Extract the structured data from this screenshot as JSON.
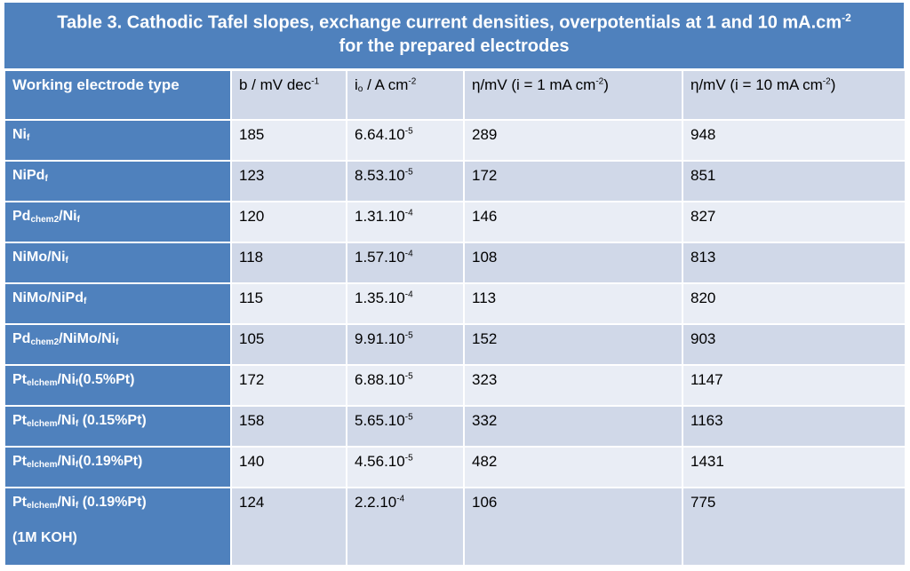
{
  "title": {
    "line1": "Table 3. Cathodic Tafel slopes, exchange current densities, overpotentials at 1 and 10 mA.cm",
    "line1_sup": "-2",
    "line2": "for the prepared electrodes"
  },
  "headers": {
    "col0": "Working electrode type",
    "col1_main": "b / mV dec",
    "col1_sup": "-1",
    "col2_main": "i",
    "col2_sub": "o",
    "col2_rest": " / A cm",
    "col2_sup": "-2",
    "col3_main": "η/mV (i = 1 mA cm",
    "col3_sup": "-2",
    "col3_end": ")",
    "col4_main": "η/mV (i = 10 mA cm",
    "col4_sup": "-2",
    "col4_end": ")"
  },
  "rows": [
    {
      "e1": "Ni",
      "s1": "f",
      "e2": "",
      "s2": "",
      "e3": "",
      "b": "185",
      "io": "6.64.10",
      "io_exp": "-5",
      "eta1": "289",
      "eta10": "948"
    },
    {
      "e1": "NiPd",
      "s1": "f",
      "e2": "",
      "s2": "",
      "e3": "",
      "b": "123",
      "io": "8.53.10",
      "io_exp": "-5",
      "eta1": "172",
      "eta10": "851"
    },
    {
      "e1": "Pd",
      "s1": "chem2",
      "e2": "/Ni",
      "s2": "f",
      "e3": "",
      "b": "120",
      "io": "1.31.10",
      "io_exp": "-4",
      "eta1": "146",
      "eta10": "827"
    },
    {
      "e1": "NiMo/Ni",
      "s1": "f",
      "e2": "",
      "s2": "",
      "e3": "",
      "b": "118",
      "io": "1.57.10",
      "io_exp": "-4",
      "eta1": "108",
      "eta10": "813"
    },
    {
      "e1": "NiMo/NiPd",
      "s1": "f",
      "e2": "",
      "s2": "",
      "e3": "",
      "b": "115",
      "io": "1.35.10",
      "io_exp": "-4",
      "eta1": "113",
      "eta10": "820"
    },
    {
      "e1": "Pd",
      "s1": "chem2",
      "e2": "/NiMo/Ni",
      "s2": "f",
      "e3": "",
      "b": "105",
      "io": "9.91.10",
      "io_exp": "-5",
      "eta1": "152",
      "eta10": "903"
    },
    {
      "e1": "Pt",
      "s1": "elchem",
      "e2": "/Ni",
      "s2": "f",
      "e3": "(0.5%Pt)",
      "b": "172",
      "io": "6.88.10",
      "io_exp": "-5",
      "eta1": "323",
      "eta10": "1147"
    },
    {
      "e1": "Pt",
      "s1": "elchem",
      "e2": "/Ni",
      "s2": "f",
      "e3": " (0.15%Pt)",
      "b": "158",
      "io": "5.65.10",
      "io_exp": "-5",
      "eta1": "332",
      "eta10": "1163"
    },
    {
      "e1": "Pt",
      "s1": "elchem",
      "e2": "/Ni",
      "s2": "f",
      "e3": "(0.19%Pt)",
      "b": "140",
      "io": "4.56.10",
      "io_exp": "-5",
      "eta1": "482",
      "eta10": "1431"
    },
    {
      "e1": "Pt",
      "s1": "elchem",
      "e2": "/Ni",
      "s2": "f",
      "e3": " (0.19%Pt)",
      "b": "124",
      "io": "2.2.10",
      "io_exp": "-4",
      "eta1": "106",
      "eta10": "775",
      "note": "(1M KOH)"
    }
  ]
}
